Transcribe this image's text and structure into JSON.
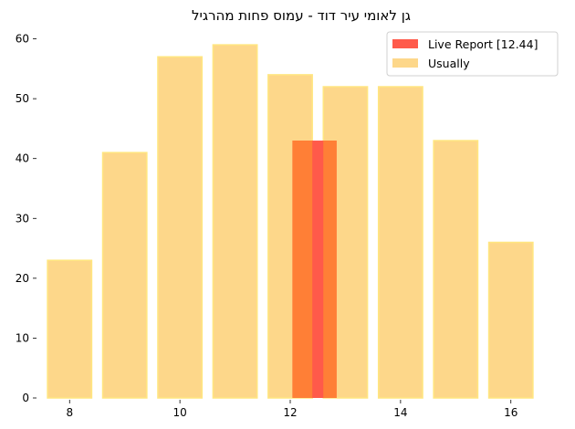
{
  "chart_data": {
    "type": "bar",
    "title": "גן לאומי עיר דוד  - עמוס פחות מהרגיל",
    "xlabel": "",
    "ylabel": "",
    "xlim": [
      7.4,
      16.6
    ],
    "ylim": [
      0,
      61
    ],
    "xticks": [
      8,
      10,
      12,
      14,
      16
    ],
    "yticks": [
      0,
      10,
      20,
      30,
      40,
      50,
      60
    ],
    "grid": false,
    "legend_position": "top-right",
    "series": [
      {
        "name": "Usually",
        "color": "#fdd78a",
        "edge_color": "#ffe680",
        "x": [
          8,
          9,
          10,
          11,
          12,
          13,
          14,
          15,
          16
        ],
        "values": [
          23,
          41,
          57,
          59,
          54,
          52,
          52,
          43,
          26
        ]
      },
      {
        "name": "Live Report [12.44]",
        "color": "#ff5a4a",
        "x": [
          12.44
        ],
        "values": [
          43
        ]
      }
    ]
  }
}
